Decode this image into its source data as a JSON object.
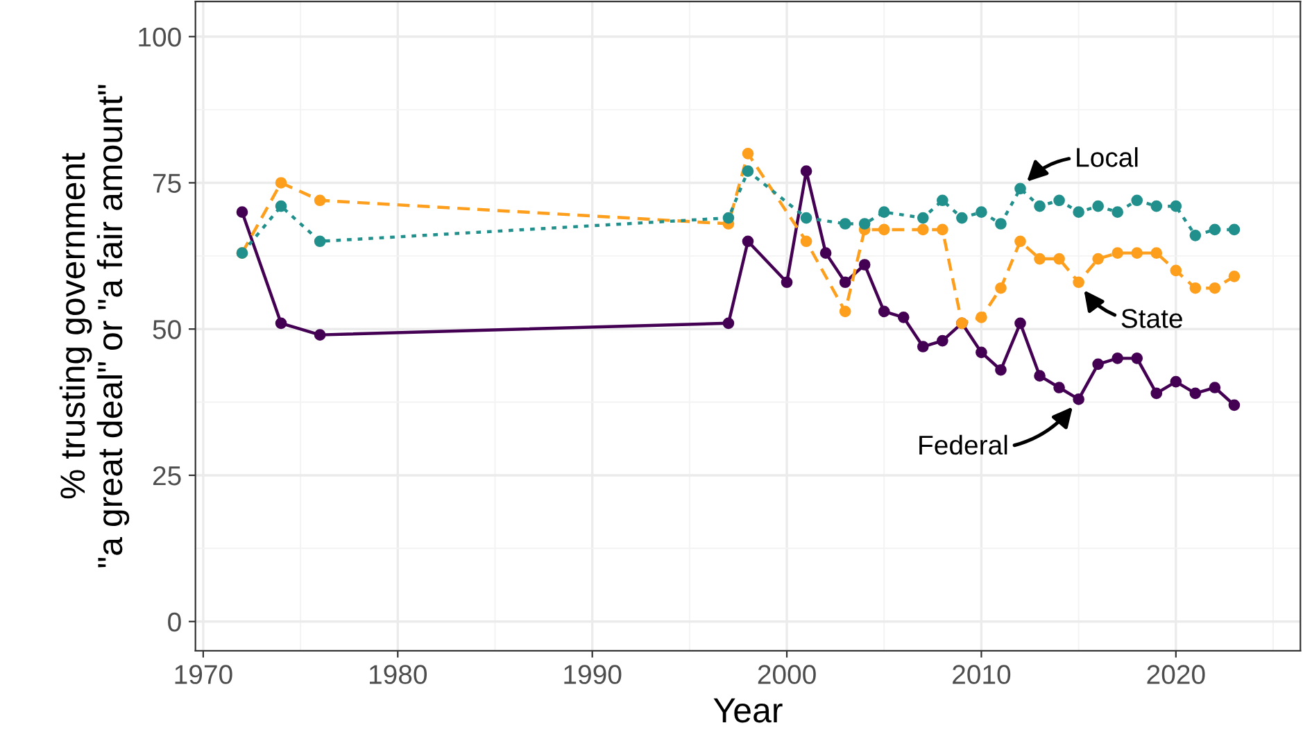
{
  "chart_data": {
    "type": "line",
    "xlabel": "Year",
    "ylabel": "% trusting government\n\"a great deal\" or \"a fair amount\"",
    "xlim": [
      1969.6,
      2026.4
    ],
    "ylim": [
      -5,
      106
    ],
    "xticks": [
      1970,
      1980,
      1990,
      2000,
      2010,
      2020
    ],
    "yticks": [
      0,
      25,
      50,
      75,
      100
    ],
    "grid": true,
    "legend": false,
    "marker": "circle",
    "series": [
      {
        "name": "Federal",
        "color": "#440154",
        "line_style": "solid",
        "x": [
          1972,
          1974,
          1976,
          1997,
          1998,
          2000,
          2001,
          2002,
          2003,
          2004,
          2005,
          2006,
          2007,
          2008,
          2009,
          2010,
          2011,
          2012,
          2013,
          2014,
          2015,
          2016,
          2017,
          2018,
          2019,
          2020,
          2021,
          2022,
          2023
        ],
        "values": [
          70,
          51,
          49,
          51,
          65,
          58,
          77,
          63,
          58,
          61,
          53,
          52,
          47,
          48,
          51,
          46,
          43,
          51,
          42,
          40,
          38,
          44,
          45,
          45,
          39,
          41,
          39,
          40,
          37
        ]
      },
      {
        "name": "State",
        "color": "#fd9f1c",
        "line_style": "dashed",
        "x": [
          1972,
          1974,
          1976,
          1997,
          1998,
          2001,
          2003,
          2004,
          2005,
          2007,
          2008,
          2009,
          2010,
          2011,
          2012,
          2013,
          2014,
          2015,
          2016,
          2017,
          2018,
          2019,
          2020,
          2021,
          2022,
          2023
        ],
        "values": [
          63,
          75,
          72,
          68,
          80,
          65,
          53,
          67,
          67,
          67,
          67,
          51,
          52,
          57,
          65,
          62,
          62,
          58,
          62,
          63,
          63,
          63,
          60,
          57,
          57,
          59
        ]
      },
      {
        "name": "Local",
        "color": "#21908c",
        "line_style": "dotted",
        "x": [
          1972,
          1974,
          1976,
          1997,
          1998,
          2001,
          2003,
          2004,
          2005,
          2007,
          2008,
          2009,
          2010,
          2011,
          2012,
          2013,
          2014,
          2015,
          2016,
          2017,
          2018,
          2019,
          2020,
          2021,
          2022,
          2023
        ],
        "values": [
          63,
          71,
          65,
          69,
          77,
          69,
          68,
          68,
          70,
          69,
          72,
          69,
          70,
          68,
          74,
          71,
          72,
          70,
          71,
          70,
          72,
          71,
          71,
          66,
          67,
          67
        ]
      }
    ]
  }
}
